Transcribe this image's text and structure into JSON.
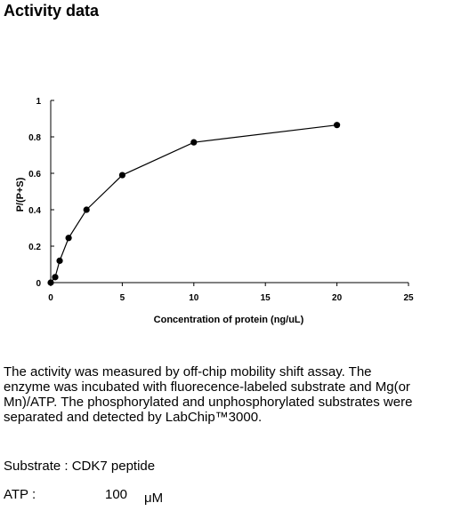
{
  "heading": "Activity data",
  "chart_data": {
    "type": "line",
    "title": "",
    "xlabel": "Concentration of protein (ng/uL)",
    "ylabel": "P/(P+S)",
    "xlim": [
      0,
      25
    ],
    "ylim": [
      0,
      1
    ],
    "x_ticks": [
      "0",
      "5",
      "10",
      "15",
      "20",
      "25"
    ],
    "y_ticks": [
      "0",
      "0.2",
      "0.4",
      "0.6",
      "0.8",
      "1"
    ],
    "grid": false,
    "legend": "none",
    "marker_color": "#000000",
    "series": [
      {
        "x": [
          0,
          0.31,
          0.625,
          1.25,
          2.5,
          5,
          10,
          20
        ],
        "y": [
          0,
          0.03,
          0.12,
          0.245,
          0.4,
          0.59,
          0.77,
          0.865
        ]
      }
    ]
  },
  "description": {
    "lines": [
      "The activity was measured by off-chip mobility shift assay. The",
      "enzyme was incubated with fluorecence-labeled  substrate and Mg(or",
      "Mn)/ATP. The phosphorylated and unphosphorylated substrates were",
      "separated and detected by LabChip™3000."
    ]
  },
  "substrate": "Substrate : CDK7 peptide",
  "atp": {
    "label": "ATP :",
    "value": "100",
    "unit": "μM"
  }
}
